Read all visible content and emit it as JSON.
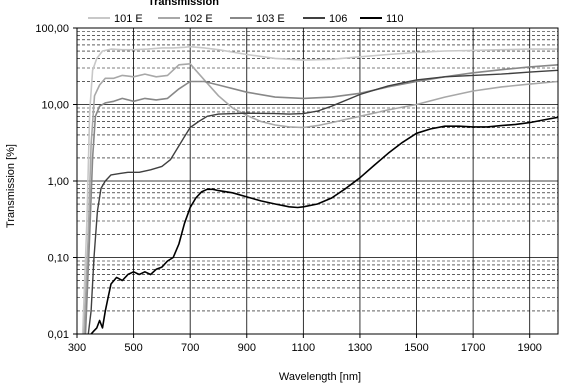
{
  "chart_data": {
    "type": "line",
    "title": "Transmission",
    "xlabel": "Wavelength [nm]",
    "ylabel": "Transmission [%]",
    "xlim": [
      300,
      2000
    ],
    "ylim": [
      0.01,
      100
    ],
    "y_scale": "log",
    "grid": true,
    "legend_position": "top",
    "x_ticks": [
      "300",
      "500",
      "700",
      "900",
      "1100",
      "1300",
      "1500",
      "1700",
      "1900"
    ],
    "y_ticks": [
      "0,01",
      "0,10",
      "1,00",
      "10,00",
      "100,00"
    ],
    "series": [
      {
        "name": "101 E",
        "color": "#c8c8c8",
        "width": 1.6,
        "points": [
          [
            320,
            0.01
          ],
          [
            335,
            0.3
          ],
          [
            345,
            8
          ],
          [
            355,
            28
          ],
          [
            370,
            40
          ],
          [
            390,
            50
          ],
          [
            420,
            53
          ],
          [
            460,
            52
          ],
          [
            500,
            52
          ],
          [
            550,
            53
          ],
          [
            600,
            55
          ],
          [
            640,
            55
          ],
          [
            680,
            56
          ],
          [
            700,
            57
          ],
          [
            750,
            55
          ],
          [
            800,
            52
          ],
          [
            900,
            45
          ],
          [
            1000,
            40
          ],
          [
            1100,
            38
          ],
          [
            1200,
            39
          ],
          [
            1300,
            42
          ],
          [
            1400,
            45
          ],
          [
            1500,
            48
          ],
          [
            1600,
            50
          ],
          [
            1700,
            51
          ],
          [
            1800,
            52
          ],
          [
            1900,
            53
          ],
          [
            2000,
            53
          ]
        ]
      },
      {
        "name": "102 E",
        "color": "#a8a8a8",
        "width": 1.6,
        "points": [
          [
            325,
            0.01
          ],
          [
            340,
            0.2
          ],
          [
            350,
            3
          ],
          [
            362,
            13
          ],
          [
            380,
            18
          ],
          [
            400,
            22
          ],
          [
            430,
            22
          ],
          [
            460,
            24
          ],
          [
            500,
            23
          ],
          [
            540,
            25
          ],
          [
            580,
            23
          ],
          [
            620,
            24
          ],
          [
            660,
            33
          ],
          [
            700,
            34
          ],
          [
            720,
            28
          ],
          [
            760,
            19
          ],
          [
            800,
            13
          ],
          [
            850,
            9
          ],
          [
            900,
            7.2
          ],
          [
            950,
            6
          ],
          [
            1000,
            5.4
          ],
          [
            1050,
            5.1
          ],
          [
            1100,
            5
          ],
          [
            1150,
            5.3
          ],
          [
            1200,
            5.8
          ],
          [
            1300,
            7
          ],
          [
            1400,
            8.5
          ],
          [
            1500,
            10
          ],
          [
            1600,
            12.5
          ],
          [
            1700,
            15
          ],
          [
            1800,
            17
          ],
          [
            1900,
            18.5
          ],
          [
            2000,
            20
          ]
        ]
      },
      {
        "name": "103 E",
        "color": "#888888",
        "width": 1.6,
        "points": [
          [
            330,
            0.01
          ],
          [
            345,
            0.2
          ],
          [
            355,
            2
          ],
          [
            365,
            7
          ],
          [
            380,
            9.5
          ],
          [
            400,
            10.5
          ],
          [
            430,
            11
          ],
          [
            460,
            12
          ],
          [
            500,
            11
          ],
          [
            540,
            12
          ],
          [
            580,
            11.5
          ],
          [
            620,
            12
          ],
          [
            660,
            16
          ],
          [
            700,
            20
          ],
          [
            750,
            20
          ],
          [
            800,
            18
          ],
          [
            900,
            14.5
          ],
          [
            1000,
            12.5
          ],
          [
            1100,
            12
          ],
          [
            1200,
            12.5
          ],
          [
            1300,
            14
          ],
          [
            1400,
            17
          ],
          [
            1500,
            20
          ],
          [
            1600,
            23
          ],
          [
            1700,
            26
          ],
          [
            1800,
            28.5
          ],
          [
            1900,
            31
          ],
          [
            2000,
            33
          ]
        ]
      },
      {
        "name": "106",
        "color": "#404040",
        "width": 1.4,
        "points": [
          [
            340,
            0.01
          ],
          [
            350,
            0.02
          ],
          [
            360,
            0.1
          ],
          [
            372,
            0.4
          ],
          [
            385,
            0.8
          ],
          [
            400,
            1.0
          ],
          [
            420,
            1.2
          ],
          [
            450,
            1.25
          ],
          [
            480,
            1.3
          ],
          [
            520,
            1.3
          ],
          [
            560,
            1.4
          ],
          [
            600,
            1.55
          ],
          [
            630,
            1.9
          ],
          [
            650,
            2.5
          ],
          [
            680,
            3.8
          ],
          [
            700,
            5
          ],
          [
            730,
            6
          ],
          [
            760,
            7
          ],
          [
            800,
            7.5
          ],
          [
            900,
            7.7
          ],
          [
            1000,
            7.6
          ],
          [
            1050,
            7.5
          ],
          [
            1100,
            7.6
          ],
          [
            1150,
            8.2
          ],
          [
            1200,
            9.5
          ],
          [
            1300,
            13.5
          ],
          [
            1400,
            17.5
          ],
          [
            1500,
            21
          ],
          [
            1600,
            23
          ],
          [
            1700,
            24
          ],
          [
            1800,
            25
          ],
          [
            1900,
            26.5
          ],
          [
            2000,
            28
          ]
        ]
      },
      {
        "name": "110",
        "color": "#000000",
        "width": 1.6,
        "points": [
          [
            350,
            0.01
          ],
          [
            360,
            0.011
          ],
          [
            370,
            0.012
          ],
          [
            380,
            0.015
          ],
          [
            390,
            0.012
          ],
          [
            400,
            0.02
          ],
          [
            410,
            0.03
          ],
          [
            420,
            0.045
          ],
          [
            440,
            0.055
          ],
          [
            460,
            0.05
          ],
          [
            480,
            0.06
          ],
          [
            500,
            0.065
          ],
          [
            520,
            0.06
          ],
          [
            540,
            0.065
          ],
          [
            560,
            0.06
          ],
          [
            580,
            0.07
          ],
          [
            600,
            0.075
          ],
          [
            620,
            0.09
          ],
          [
            640,
            0.1
          ],
          [
            660,
            0.15
          ],
          [
            680,
            0.28
          ],
          [
            700,
            0.45
          ],
          [
            720,
            0.6
          ],
          [
            740,
            0.72
          ],
          [
            760,
            0.78
          ],
          [
            780,
            0.78
          ],
          [
            800,
            0.75
          ],
          [
            850,
            0.7
          ],
          [
            900,
            0.62
          ],
          [
            950,
            0.55
          ],
          [
            1000,
            0.5
          ],
          [
            1050,
            0.46
          ],
          [
            1080,
            0.45
          ],
          [
            1100,
            0.46
          ],
          [
            1150,
            0.5
          ],
          [
            1200,
            0.6
          ],
          [
            1250,
            0.8
          ],
          [
            1300,
            1.1
          ],
          [
            1350,
            1.6
          ],
          [
            1400,
            2.3
          ],
          [
            1450,
            3.2
          ],
          [
            1500,
            4.2
          ],
          [
            1550,
            4.8
          ],
          [
            1600,
            5.2
          ],
          [
            1650,
            5.2
          ],
          [
            1700,
            5.1
          ],
          [
            1750,
            5.1
          ],
          [
            1800,
            5.3
          ],
          [
            1850,
            5.5
          ],
          [
            1900,
            5.8
          ],
          [
            1950,
            6.3
          ],
          [
            2000,
            6.8
          ]
        ]
      }
    ]
  }
}
